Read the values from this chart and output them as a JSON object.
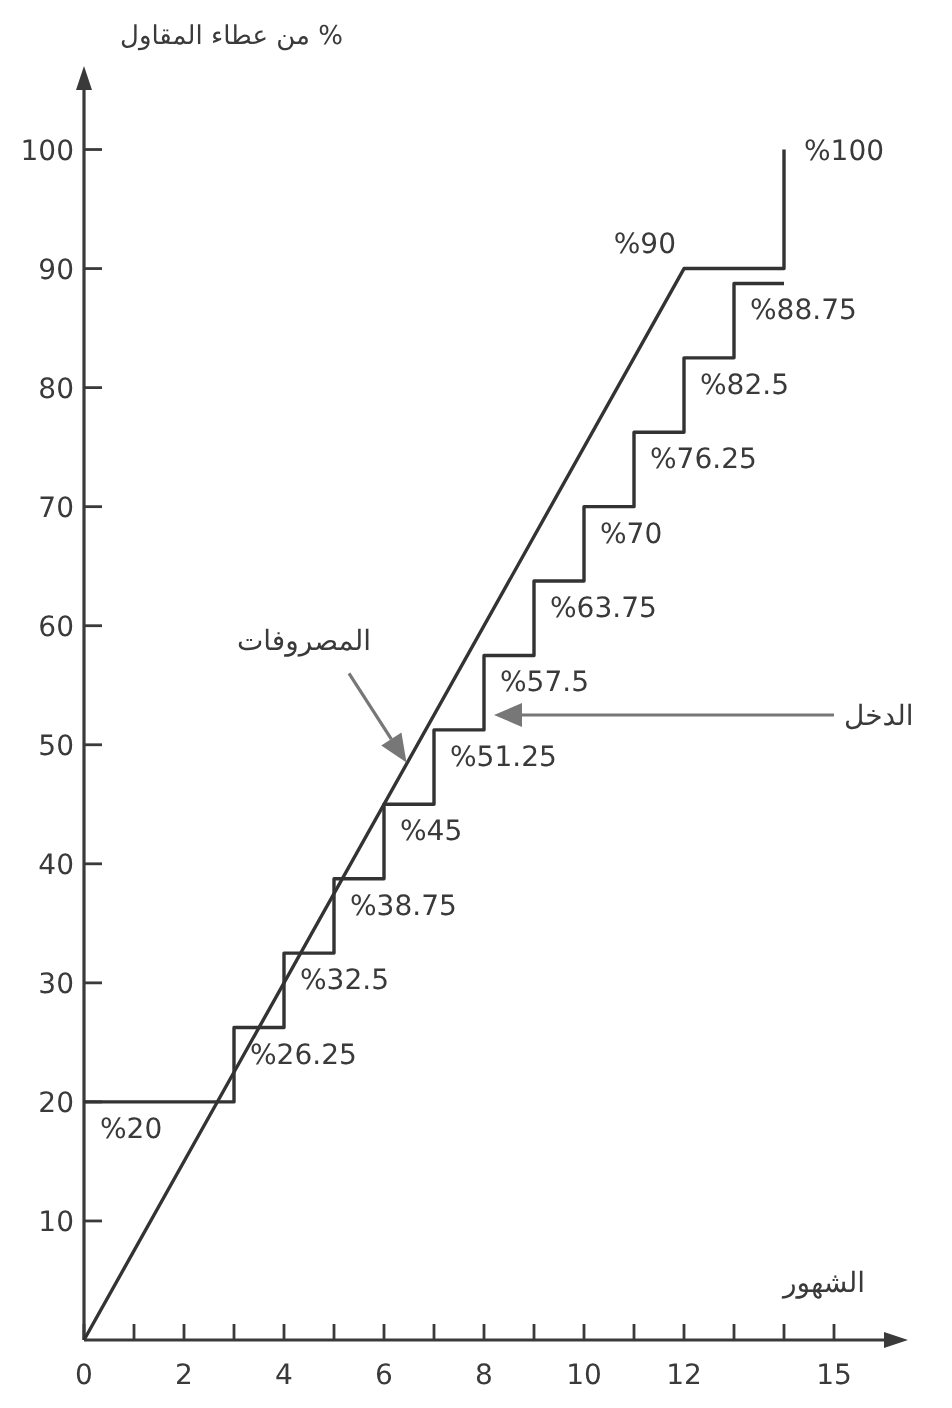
{
  "chart_data": {
    "type": "line",
    "xlabel": "الشهور",
    "ylabel": "% من عطاء المقاول",
    "xlim": [
      0,
      16
    ],
    "ylim": [
      0,
      105
    ],
    "xticks": [
      0,
      {
        "value": 1,
        "label": null
      },
      2,
      {
        "value": 3,
        "label": null
      },
      4,
      {
        "value": 5,
        "label": null
      },
      6,
      {
        "value": 7,
        "label": null
      },
      8,
      {
        "value": 9,
        "label": null
      },
      10,
      {
        "value": 11,
        "label": null
      },
      12,
      {
        "value": 13,
        "label": null
      },
      {
        "value": 14,
        "label": null
      },
      15
    ],
    "yticks": [
      10,
      20,
      30,
      40,
      50,
      60,
      70,
      80,
      90,
      100
    ],
    "series": [
      {
        "name": "المصروفات",
        "color": "#333333",
        "x": [
          0,
          12,
          14,
          14
        ],
        "values": [
          0,
          90,
          90,
          100
        ],
        "value_labels": [
          null,
          "%90",
          null,
          "%100"
        ]
      },
      {
        "name": "الدخل",
        "type": "step",
        "color": "#333333",
        "x": [
          0,
          3,
          4,
          5,
          6,
          7,
          8,
          9,
          10,
          11,
          12,
          13,
          14
        ],
        "values": [
          20,
          26.25,
          32.5,
          38.75,
          45,
          51.25,
          57.5,
          63.75,
          70,
          76.25,
          82.5,
          88.75,
          88.75
        ],
        "value_labels": [
          "%20",
          "%26.25",
          "%32.5",
          "%38.75",
          "%45",
          "%51.25",
          "%57.5",
          "%63.75",
          "%70",
          "%76.25",
          "%82.5",
          "%88.75",
          null
        ]
      }
    ]
  }
}
